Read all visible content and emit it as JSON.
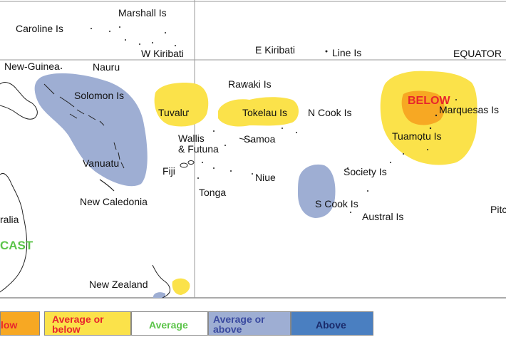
{
  "map": {
    "colors": {
      "ocean": "#ffffff",
      "land_outline": "#222222",
      "grid": "#9a9a9a",
      "below": "#f7a823",
      "average_or_below": "#fbe24a",
      "average": "#ffffff",
      "average_or_above": "#9eaed3",
      "above": "#4a7fc1"
    },
    "labels": {
      "marshall": "Marshall Is",
      "caroline": "Caroline Is",
      "w_kiribati": "W Kiribati",
      "e_kiribati": "E Kiribati",
      "line": "Line Is",
      "equator": "EQUATOR",
      "png": "New-Guinea",
      "nauru": "Nauru",
      "solomon": "Solomon Is",
      "rawaki": "Rawaki Is",
      "tuvalu": "Tuvalu",
      "tokelau": "Tokelau Is",
      "n_cook": "N Cook Is",
      "marquesas": "Marquesas Is",
      "tuamotu": "Tuamotu Is",
      "wallis": "Wallis",
      "futuna": "& Futuna",
      "samoa": "Samoa",
      "vanuatu": "Vanuatu",
      "fiji": "Fiji",
      "niue": "Niue",
      "society": "Society Is",
      "tonga": "Tonga",
      "new_caledonia": "New Caledonia",
      "s_cook": "S Cook Is",
      "austral": "Austral Is",
      "australia": "ralia",
      "pitcairn": "Pitc",
      "new_zealand": "New Zealand",
      "below_region": "BELOW",
      "forecast": "CAST"
    }
  },
  "legend": {
    "items": [
      {
        "label": "low",
        "color": "#f7a823",
        "text_color": "#e8262c"
      },
      {
        "label": "Average or below",
        "color": "#fbe24a",
        "text_color": "#e8262c"
      },
      {
        "label": "Average",
        "color": "#ffffff",
        "text_color": "#5cc44a"
      },
      {
        "label": "Average or above",
        "color": "#9eaed3",
        "text_color": "#3a4aa0"
      },
      {
        "label": "Above",
        "color": "#4a7fc1",
        "text_color": "#1a2a6a"
      }
    ]
  }
}
